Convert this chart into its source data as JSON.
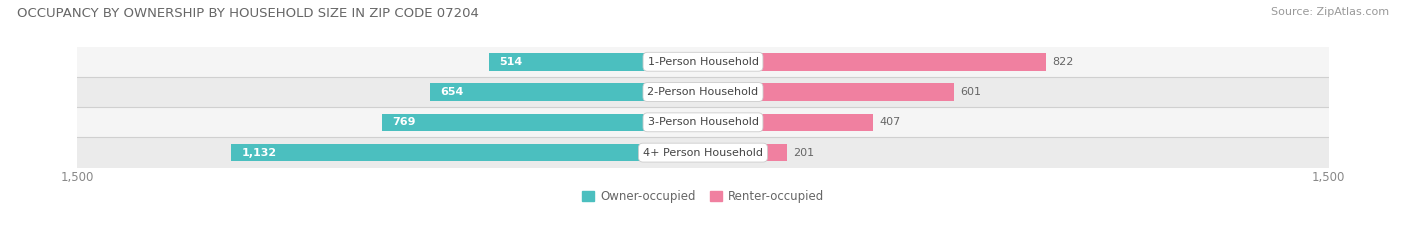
{
  "title": "OCCUPANCY BY OWNERSHIP BY HOUSEHOLD SIZE IN ZIP CODE 07204",
  "source": "Source: ZipAtlas.com",
  "categories": [
    "1-Person Household",
    "2-Person Household",
    "3-Person Household",
    "4+ Person Household"
  ],
  "owner_values": [
    514,
    654,
    769,
    1132
  ],
  "renter_values": [
    822,
    601,
    407,
    201
  ],
  "owner_color": "#4bbfbf",
  "renter_color": "#f080a0",
  "row_odd_color": "#f5f5f5",
  "row_even_color": "#ebebeb",
  "axis_max": 1500,
  "title_fontsize": 9.5,
  "source_fontsize": 8,
  "tick_fontsize": 8.5,
  "bar_label_fontsize": 8,
  "category_fontsize": 8,
  "legend_fontsize": 8.5,
  "figure_bg": "#ffffff",
  "separator_color": "#d0d0d0",
  "outer_label_color": "#666666",
  "inner_label_color": "#ffffff",
  "inner_label_owner_threshold": 400
}
